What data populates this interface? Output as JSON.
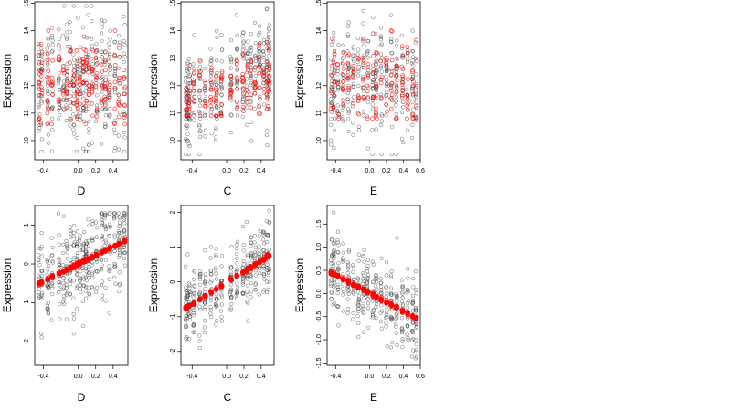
{
  "chart_data": [
    {
      "type": "scatter",
      "xlabel": "D",
      "ylabel": "Expression",
      "xticks": [
        -0.4,
        0.0,
        0.2,
        0.4
      ],
      "xtick_labels": [
        "-0.4",
        "0.0",
        "0.2",
        "0.4"
      ],
      "yticks": [
        10,
        11,
        12,
        13,
        14,
        15
      ],
      "ytick_labels": [
        "10",
        "11",
        "12",
        "13",
        "14",
        "15"
      ],
      "xlim": [
        -0.5,
        0.57
      ],
      "ylim": [
        9.3,
        15.05
      ],
      "x_columns": [
        -0.45,
        -0.42,
        -0.35,
        -0.3,
        -0.22,
        -0.17,
        -0.13,
        -0.09,
        -0.05,
        -0.01,
        0.02,
        0.06,
        0.09,
        0.12,
        0.16,
        0.21,
        0.27,
        0.31,
        0.36,
        0.42,
        0.47,
        0.53
      ],
      "black_points": {
        "y_range": [
          9.6,
          14.9
        ],
        "center": 12.1,
        "spread": 1.1
      },
      "red_points": {
        "y_range": [
          10.6,
          14.0
        ],
        "center": 12.1,
        "spread": 0.8
      },
      "grid": false
    },
    {
      "type": "scatter",
      "xlabel": "C",
      "ylabel": "Expression",
      "xticks": [
        -0.4,
        0.0,
        0.2,
        0.4
      ],
      "xtick_labels": [
        "-0.4",
        "0.0",
        "0.2",
        "0.4"
      ],
      "yticks": [
        10,
        11,
        12,
        13,
        14,
        15
      ],
      "ytick_labels": [
        "10",
        "11",
        "12",
        "13",
        "14",
        "15"
      ],
      "xlim": [
        -0.53,
        0.55
      ],
      "ylim": [
        9.3,
        15.05
      ],
      "x_columns": [
        -0.47,
        -0.45,
        -0.43,
        -0.38,
        -0.31,
        -0.25,
        -0.18,
        -0.12,
        -0.06,
        0.05,
        0.12,
        0.19,
        0.24,
        0.28,
        0.33,
        0.38,
        0.43,
        0.47,
        0.49
      ],
      "black_points": {
        "y_range": [
          9.5,
          14.8
        ],
        "trend_start": 11.3,
        "trend_end": 12.9,
        "spread": 0.9
      },
      "red_points": {
        "y_range": [
          10.9,
          14.0
        ],
        "trend_start": 11.3,
        "trend_end": 12.3,
        "spread": 0.6
      },
      "grid": false
    },
    {
      "type": "scatter",
      "xlabel": "E",
      "ylabel": "Expression",
      "xticks": [
        -0.4,
        0.0,
        0.2,
        0.4,
        0.6
      ],
      "xtick_labels": [
        "-0.4",
        "0.0",
        "0.2",
        "0.4",
        "0.6"
      ],
      "yticks": [
        10,
        11,
        12,
        13,
        14,
        15
      ],
      "ytick_labels": [
        "10",
        "11",
        "12",
        "13",
        "14",
        "15"
      ],
      "xlim": [
        -0.5,
        0.6
      ],
      "ylim": [
        9.3,
        15.05
      ],
      "x_columns": [
        -0.45,
        -0.42,
        -0.37,
        -0.31,
        -0.25,
        -0.19,
        -0.13,
        -0.07,
        -0.02,
        0.04,
        0.08,
        0.14,
        0.2,
        0.26,
        0.32,
        0.39,
        0.45,
        0.51,
        0.55
      ],
      "black_points": {
        "y_range": [
          9.5,
          14.9
        ],
        "center": 12.1,
        "spread": 1.0
      },
      "red_points": {
        "y_range": [
          10.8,
          14.0
        ],
        "center": 12.1,
        "spread": 0.8
      },
      "grid": false
    },
    {
      "type": "scatter",
      "xlabel": "D",
      "ylabel": "Expression",
      "xticks": [
        -0.4,
        0.0,
        0.2,
        0.4
      ],
      "xtick_labels": [
        "-0.4",
        "0.0",
        "0.2",
        "0.4"
      ],
      "yticks": [
        -2,
        -1,
        0,
        1
      ],
      "ytick_labels": [
        "-2",
        "-1",
        "0",
        "1"
      ],
      "xlim": [
        -0.5,
        0.57
      ],
      "ylim": [
        -2.6,
        1.5
      ],
      "x_columns": [
        -0.45,
        -0.42,
        -0.35,
        -0.3,
        -0.22,
        -0.17,
        -0.13,
        -0.09,
        -0.05,
        -0.01,
        0.02,
        0.06,
        0.09,
        0.12,
        0.16,
        0.21,
        0.27,
        0.31,
        0.36,
        0.42,
        0.47,
        0.53
      ],
      "black_points": {
        "y_range": [
          -2.4,
          1.3
        ],
        "spread": 0.55
      },
      "red_fit": {
        "x": [
          -0.45,
          0.5
        ],
        "y": [
          -0.5,
          0.55
        ]
      },
      "grid": false
    },
    {
      "type": "scatter",
      "xlabel": "C",
      "ylabel": "Expression",
      "xticks": [
        -0.4,
        0.0,
        0.2,
        0.4
      ],
      "xtick_labels": [
        "-0.4",
        "0.0",
        "0.2",
        "0.4"
      ],
      "yticks": [
        -2,
        -1,
        0,
        1,
        2
      ],
      "ytick_labels": [
        "-2",
        "-1",
        "0",
        "1",
        "2"
      ],
      "xlim": [
        -0.53,
        0.55
      ],
      "ylim": [
        -2.4,
        2.2
      ],
      "x_columns": [
        -0.47,
        -0.45,
        -0.43,
        -0.38,
        -0.31,
        -0.25,
        -0.18,
        -0.12,
        -0.06,
        0.05,
        0.12,
        0.19,
        0.24,
        0.28,
        0.33,
        0.38,
        0.43,
        0.47,
        0.49
      ],
      "black_points": {
        "y_range": [
          -2.3,
          2.05
        ],
        "spread": 0.55
      },
      "red_fit": {
        "x": [
          -0.47,
          0.49
        ],
        "y": [
          -0.75,
          0.75
        ]
      },
      "grid": false
    },
    {
      "type": "scatter",
      "xlabel": "E",
      "ylabel": "Expression",
      "xticks": [
        -0.4,
        0.0,
        0.2,
        0.4,
        0.6
      ],
      "xtick_labels": [
        "-0.4",
        "0.0",
        "0.2",
        "0.4",
        "0.6"
      ],
      "yticks": [
        -1.5,
        -1.0,
        -0.5,
        0.0,
        0.5,
        1.0,
        1.5
      ],
      "ytick_labels": [
        "-1.5",
        "-1.0",
        "-0.5",
        "0.0",
        "0.5",
        "1.0",
        "1.5"
      ],
      "xlim": [
        -0.5,
        0.6
      ],
      "ylim": [
        -1.55,
        1.9
      ],
      "x_columns": [
        -0.45,
        -0.42,
        -0.37,
        -0.31,
        -0.25,
        -0.19,
        -0.13,
        -0.07,
        -0.02,
        0.04,
        0.08,
        0.14,
        0.2,
        0.26,
        0.32,
        0.39,
        0.45,
        0.51,
        0.55
      ],
      "black_points": {
        "y_range": [
          -1.4,
          1.75
        ],
        "spread": 0.42
      },
      "red_fit": {
        "x": [
          -0.45,
          0.52
        ],
        "y": [
          0.45,
          -0.5
        ]
      },
      "grid": false
    }
  ],
  "colors": {
    "black_point": "#3a3a3a",
    "red_point": "#ff0000",
    "axis": "#000000",
    "background": "#ffffff"
  }
}
